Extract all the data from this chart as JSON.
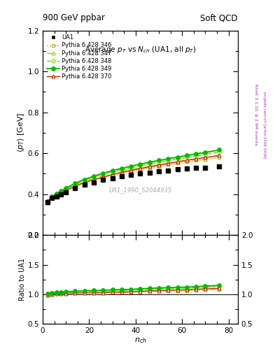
{
  "title_left": "900 GeV ppbar",
  "title_right": "Soft QCD",
  "plot_title": "Average p$_T$ vs N$_{ch}$ (UA1, all p$_T$)",
  "xlabel": "n$_{ch}$",
  "ylabel_main": "⟨p$_T$⟩ [GeV]",
  "ylabel_ratio": "Ratio to UA1",
  "watermark": "UA1_1990_S2044935",
  "right_label_top": "Rivet 3.1.10, ≥ 2.9M events",
  "right_label_bot": "mcplots.cern.ch [arXiv:1306.3436]",
  "ylim_main": [
    0.2,
    1.2
  ],
  "ylim_ratio": [
    0.5,
    2.0
  ],
  "xlim": [
    0,
    84
  ],
  "UA1_nch": [
    2,
    4,
    6,
    8,
    10,
    14,
    18,
    22,
    26,
    30,
    34,
    38,
    42,
    46,
    50,
    54,
    58,
    62,
    66,
    70,
    76
  ],
  "UA1_avgpt": [
    0.36,
    0.38,
    0.39,
    0.4,
    0.41,
    0.43,
    0.445,
    0.458,
    0.47,
    0.478,
    0.487,
    0.495,
    0.5,
    0.505,
    0.51,
    0.515,
    0.52,
    0.525,
    0.528,
    0.53,
    0.535
  ],
  "py346_nch": [
    2,
    4,
    6,
    8,
    10,
    14,
    18,
    22,
    26,
    30,
    34,
    38,
    42,
    46,
    50,
    54,
    58,
    62,
    66,
    70,
    76
  ],
  "py346_avgpt": [
    0.363,
    0.385,
    0.398,
    0.41,
    0.422,
    0.443,
    0.459,
    0.472,
    0.484,
    0.494,
    0.504,
    0.513,
    0.521,
    0.529,
    0.537,
    0.544,
    0.551,
    0.558,
    0.565,
    0.571,
    0.58
  ],
  "py347_nch": [
    2,
    4,
    6,
    8,
    10,
    14,
    18,
    22,
    26,
    30,
    34,
    38,
    42,
    46,
    50,
    54,
    58,
    62,
    66,
    70,
    76
  ],
  "py347_avgpt": [
    0.363,
    0.386,
    0.4,
    0.412,
    0.424,
    0.446,
    0.463,
    0.477,
    0.489,
    0.5,
    0.51,
    0.519,
    0.528,
    0.536,
    0.544,
    0.551,
    0.559,
    0.566,
    0.573,
    0.579,
    0.589
  ],
  "py348_nch": [
    2,
    4,
    6,
    8,
    10,
    14,
    18,
    22,
    26,
    30,
    34,
    38,
    42,
    46,
    50,
    54,
    58,
    62,
    66,
    70,
    76
  ],
  "py348_avgpt": [
    0.362,
    0.386,
    0.401,
    0.414,
    0.426,
    0.449,
    0.468,
    0.483,
    0.497,
    0.509,
    0.52,
    0.53,
    0.539,
    0.548,
    0.556,
    0.564,
    0.572,
    0.579,
    0.587,
    0.594,
    0.605
  ],
  "py349_nch": [
    2,
    4,
    6,
    8,
    10,
    14,
    18,
    22,
    26,
    30,
    34,
    38,
    42,
    46,
    50,
    54,
    58,
    62,
    66,
    70,
    76
  ],
  "py349_avgpt": [
    0.363,
    0.388,
    0.403,
    0.416,
    0.429,
    0.453,
    0.472,
    0.488,
    0.502,
    0.515,
    0.526,
    0.537,
    0.547,
    0.556,
    0.565,
    0.573,
    0.581,
    0.589,
    0.597,
    0.604,
    0.616
  ],
  "py370_nch": [
    2,
    4,
    6,
    8,
    10,
    14,
    18,
    22,
    26,
    30,
    34,
    38,
    42,
    46,
    50,
    54,
    58,
    62,
    66,
    70,
    76
  ],
  "py370_avgpt": [
    0.357,
    0.38,
    0.394,
    0.406,
    0.417,
    0.439,
    0.456,
    0.47,
    0.483,
    0.495,
    0.506,
    0.516,
    0.525,
    0.534,
    0.542,
    0.55,
    0.558,
    0.565,
    0.572,
    0.579,
    0.589
  ],
  "color_346": "#c8a000",
  "color_347": "#a8c800",
  "color_348": "#70d800",
  "color_349": "#00bb00",
  "color_370": "#cc2200",
  "color_UA1": "#000000",
  "band_color_349": "#bbff88",
  "band_color_346": "#ffe8a8"
}
